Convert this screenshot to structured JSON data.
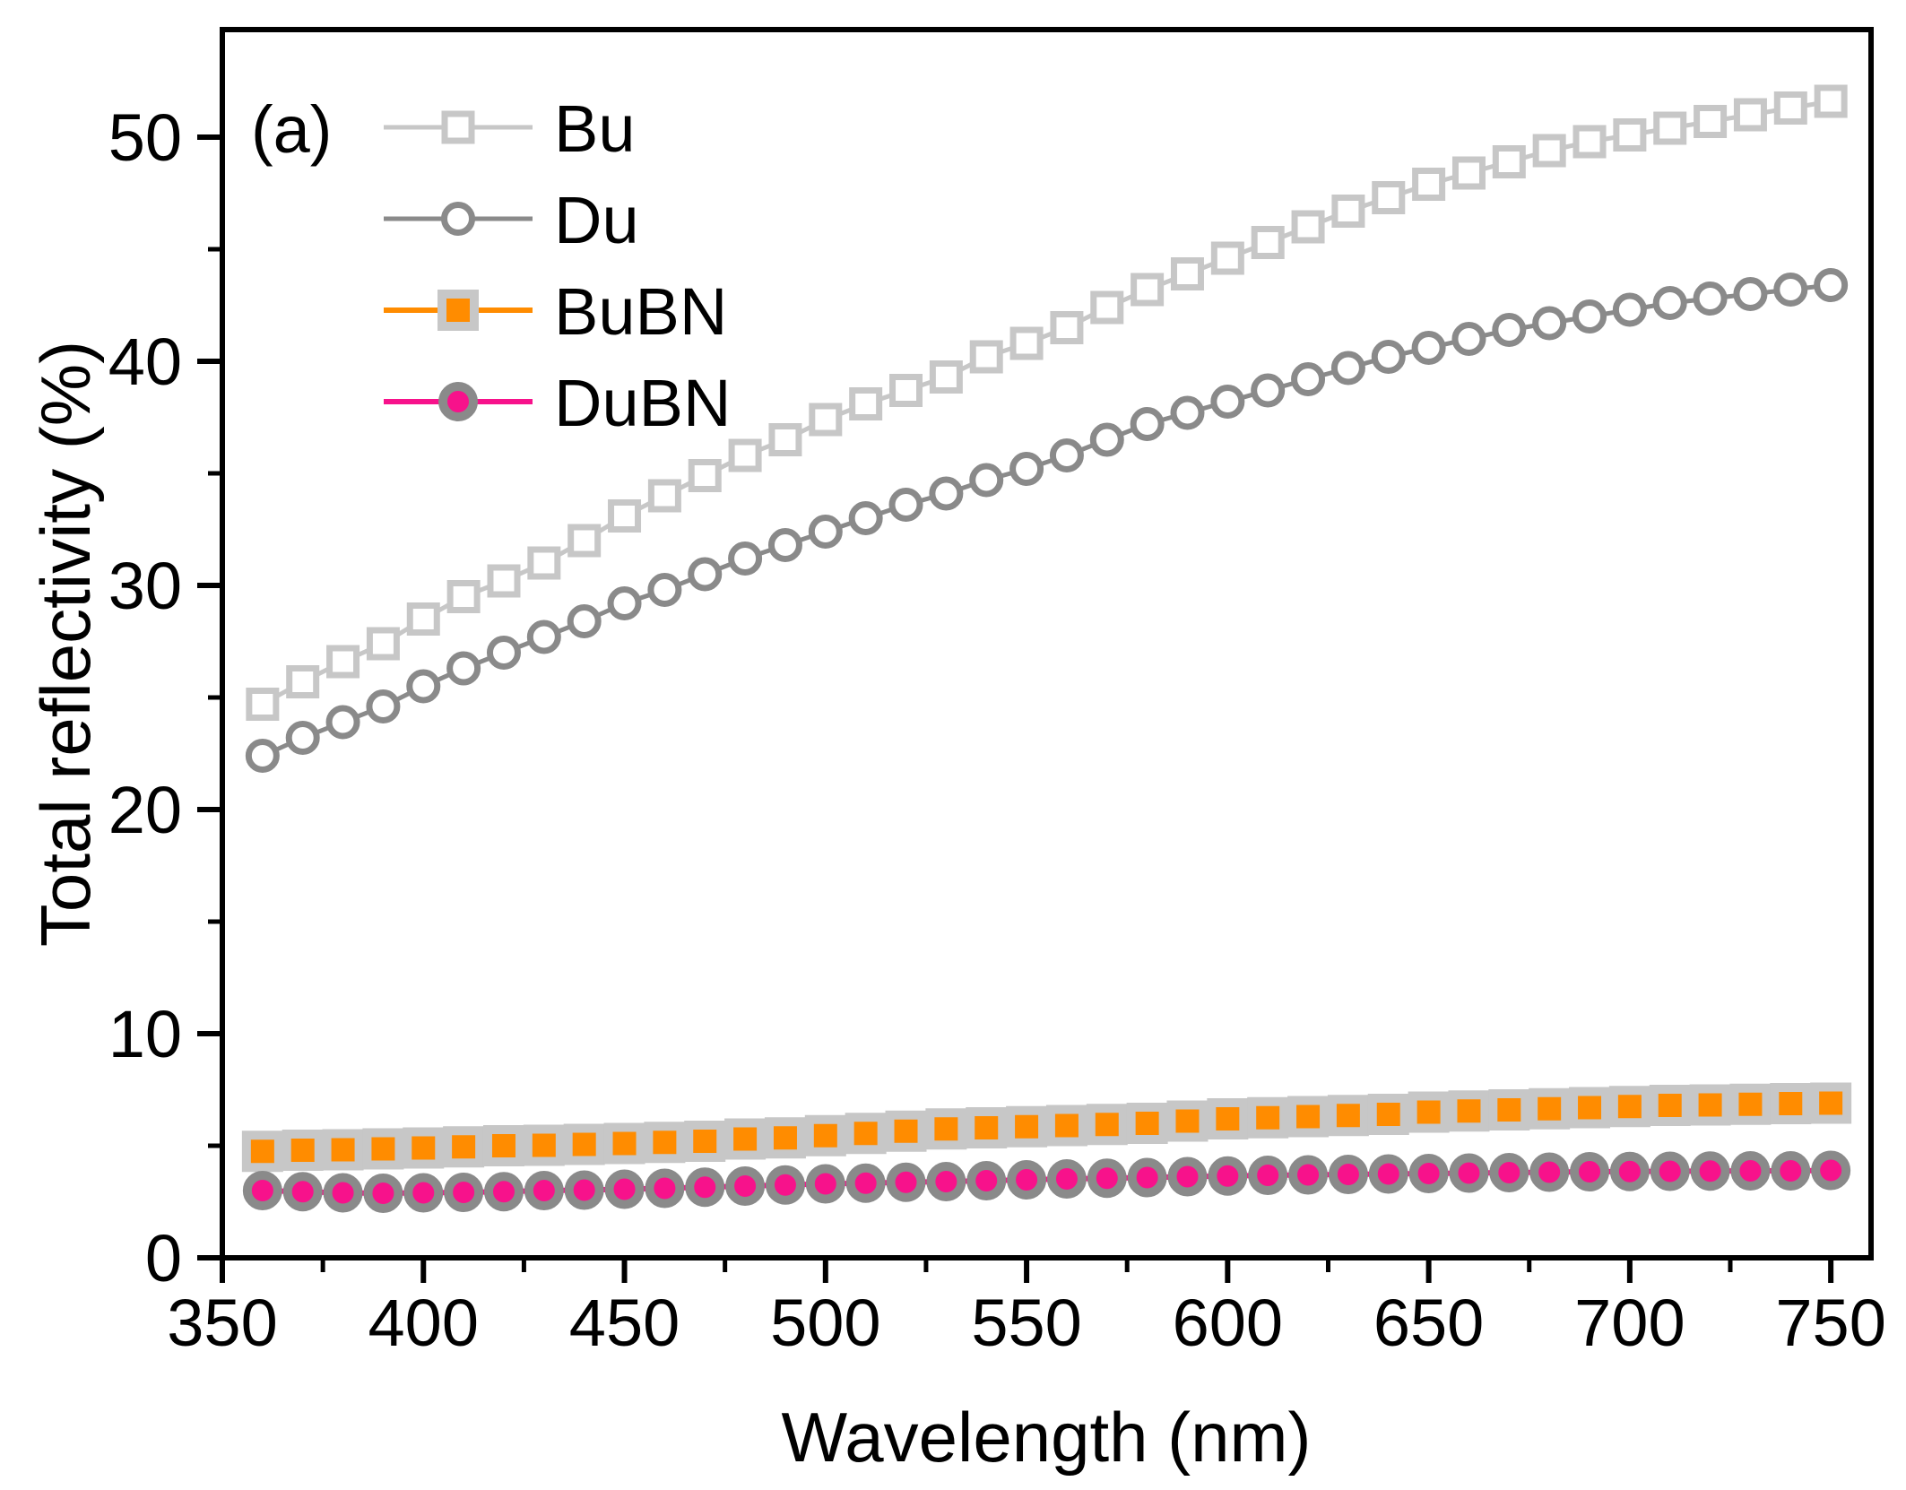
{
  "figure": {
    "panel_label": "(a)"
  },
  "chart_data": {
    "type": "line",
    "title": "",
    "xlabel": "Wavelength (nm)",
    "ylabel": "Total reflectivity (%)",
    "xlim": [
      350,
      760
    ],
    "ylim": [
      0,
      54.8
    ],
    "x_major_ticks": [
      350,
      400,
      450,
      500,
      550,
      600,
      650,
      700,
      750
    ],
    "x_minor_ticks": [
      375,
      425,
      475,
      525,
      575,
      625,
      675,
      725
    ],
    "y_major_ticks": [
      0,
      10,
      20,
      30,
      40,
      50
    ],
    "y_minor_ticks": [
      5,
      15,
      25,
      35,
      45
    ],
    "grid": false,
    "legend_position": "top-left",
    "axis_color": "#000000",
    "x": [
      360,
      370,
      380,
      390,
      400,
      410,
      420,
      430,
      440,
      450,
      460,
      470,
      480,
      490,
      500,
      510,
      520,
      530,
      540,
      550,
      560,
      570,
      580,
      590,
      600,
      610,
      620,
      630,
      640,
      650,
      660,
      670,
      680,
      690,
      700,
      710,
      720,
      730,
      740,
      750
    ],
    "series": [
      {
        "name": "Bu",
        "marker": "open-square",
        "color": "#C7C7C7",
        "marker_fill": "#ffffff",
        "marker_edge": "#C7C7C7",
        "values": [
          24.7,
          25.7,
          26.6,
          27.4,
          28.5,
          29.5,
          30.2,
          31.0,
          32.0,
          33.1,
          34.0,
          34.9,
          35.8,
          36.5,
          37.4,
          38.1,
          38.7,
          39.3,
          40.2,
          40.8,
          41.5,
          42.4,
          43.2,
          43.9,
          44.6,
          45.3,
          46.0,
          46.7,
          47.3,
          47.9,
          48.4,
          48.9,
          49.4,
          49.8,
          50.1,
          50.4,
          50.7,
          51.0,
          51.3,
          51.6
        ]
      },
      {
        "name": "Du",
        "marker": "open-circle",
        "color": "#8A8A8A",
        "marker_fill": "#ffffff",
        "marker_edge": "#8A8A8A",
        "values": [
          22.4,
          23.2,
          23.9,
          24.6,
          25.5,
          26.3,
          27.0,
          27.7,
          28.4,
          29.2,
          29.8,
          30.5,
          31.2,
          31.8,
          32.4,
          33.0,
          33.6,
          34.1,
          34.7,
          35.2,
          35.8,
          36.5,
          37.2,
          37.7,
          38.2,
          38.7,
          39.2,
          39.7,
          40.2,
          40.6,
          41.0,
          41.4,
          41.7,
          42.0,
          42.3,
          42.6,
          42.8,
          43.0,
          43.2,
          43.4
        ]
      },
      {
        "name": "BuBN",
        "marker": "filled-square",
        "color": "#FF8C00",
        "marker_fill": "#FF8C00",
        "marker_edge": "#C7C7C7",
        "values": [
          4.75,
          4.8,
          4.82,
          4.86,
          4.9,
          4.95,
          5.0,
          5.02,
          5.06,
          5.1,
          5.15,
          5.2,
          5.3,
          5.35,
          5.45,
          5.55,
          5.65,
          5.75,
          5.8,
          5.85,
          5.9,
          5.95,
          6.0,
          6.1,
          6.2,
          6.25,
          6.3,
          6.35,
          6.4,
          6.5,
          6.55,
          6.6,
          6.65,
          6.7,
          6.75,
          6.8,
          6.82,
          6.85,
          6.88,
          6.9
        ]
      },
      {
        "name": "DuBN",
        "marker": "filled-circle",
        "color": "#F7128B",
        "marker_fill": "#F7128B",
        "marker_edge": "#8A8A8A",
        "values": [
          3.0,
          2.95,
          2.9,
          2.88,
          2.9,
          2.92,
          2.95,
          3.0,
          3.02,
          3.06,
          3.1,
          3.15,
          3.2,
          3.25,
          3.3,
          3.33,
          3.37,
          3.4,
          3.44,
          3.48,
          3.52,
          3.55,
          3.58,
          3.62,
          3.65,
          3.68,
          3.7,
          3.72,
          3.74,
          3.76,
          3.78,
          3.8,
          3.82,
          3.84,
          3.85,
          3.86,
          3.87,
          3.88,
          3.88,
          3.9
        ]
      }
    ]
  }
}
